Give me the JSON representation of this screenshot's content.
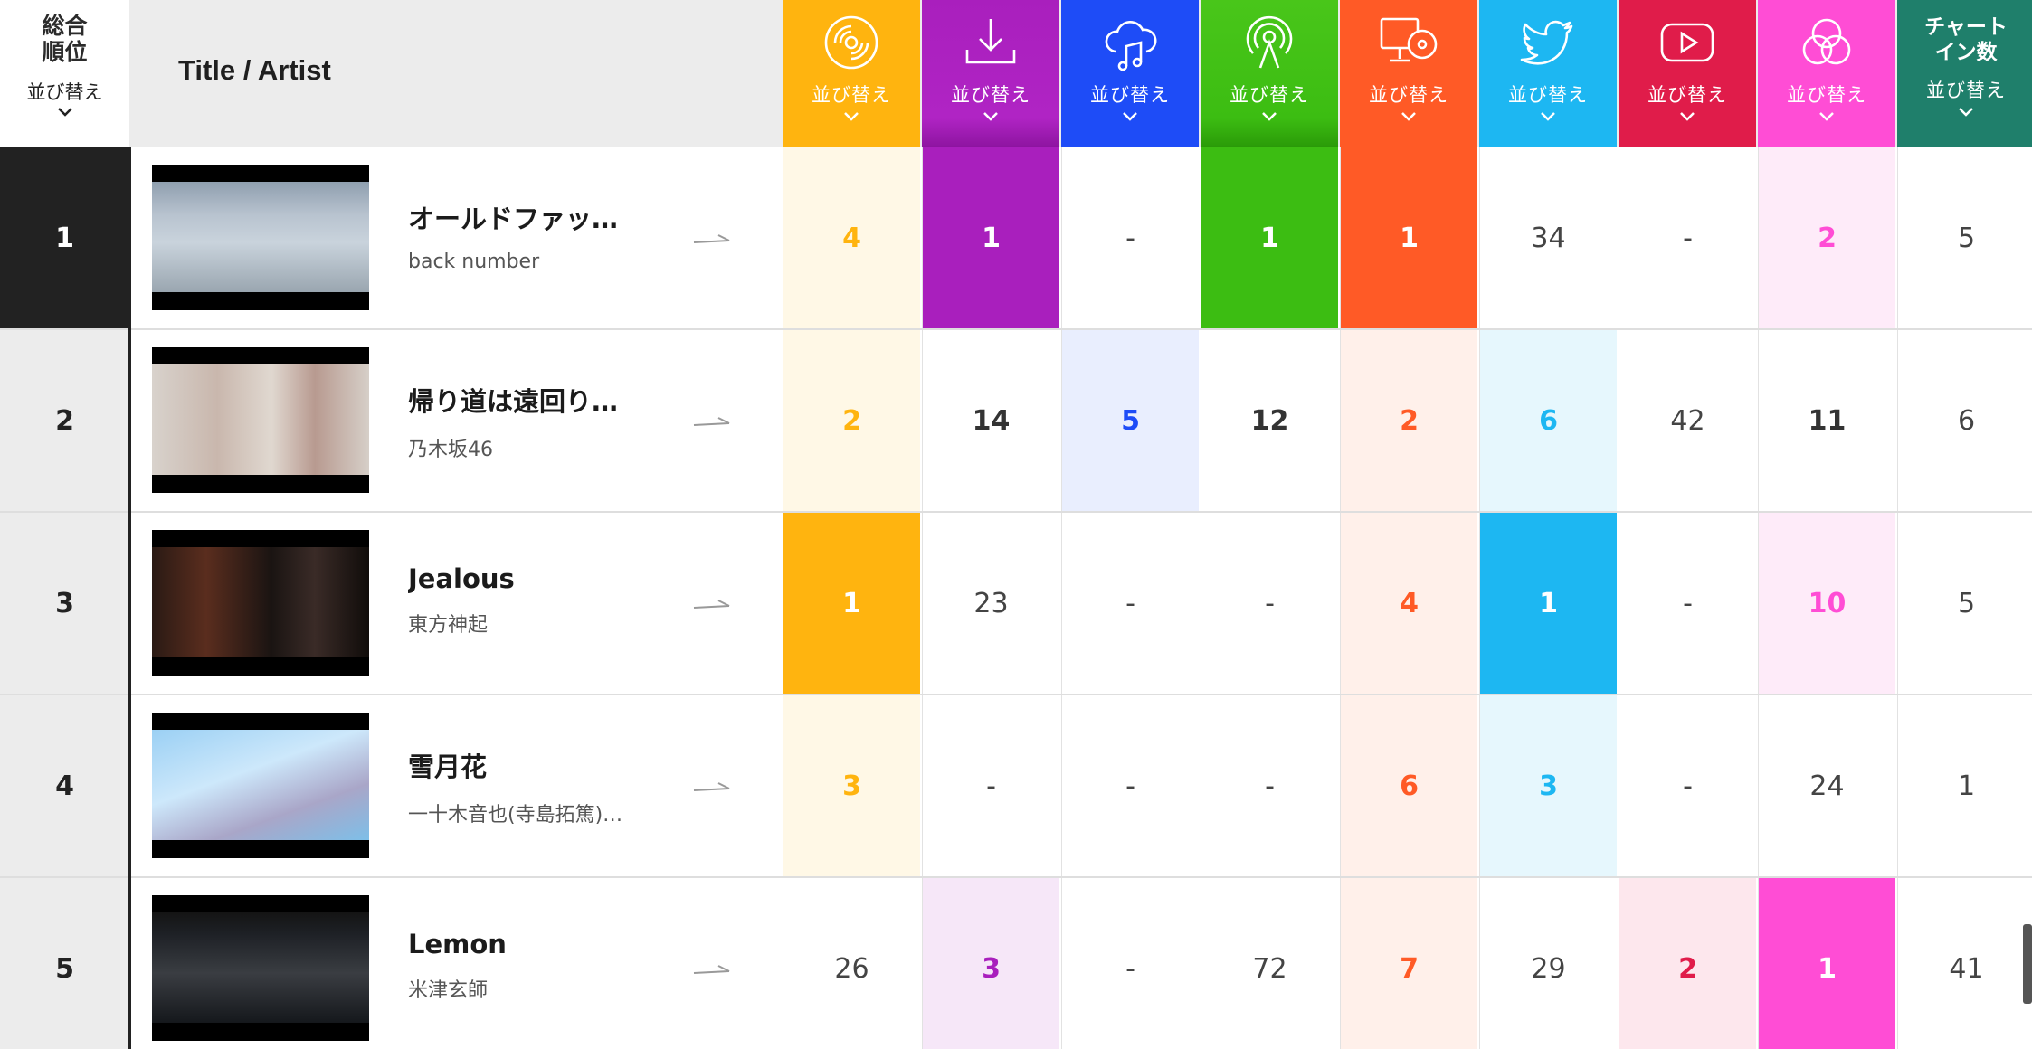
{
  "header": {
    "rank_label": "総合\n順位",
    "rank_label_l1": "総合",
    "rank_label_l2": "順位",
    "sort_label": "並び替え",
    "title_artist": "Title / Artist",
    "columns": [
      {
        "key": "cd",
        "icon": "cd-disc-icon",
        "color": "#ffb40f",
        "label": "並び替え"
      },
      {
        "key": "download",
        "icon": "download-icon",
        "color": "#a91fbd",
        "label": "並び替え"
      },
      {
        "key": "streaming",
        "icon": "cloud-music-icon",
        "color": "#1e4cf7",
        "label": "並び替え"
      },
      {
        "key": "radio",
        "icon": "radio-broadcast-icon",
        "color": "#3cbd12",
        "label": "並び替え"
      },
      {
        "key": "pc_lookup",
        "icon": "pc-disc-icon",
        "color": "#ff5a26",
        "label": "並び替え"
      },
      {
        "key": "twitter",
        "icon": "twitter-bird-icon",
        "color": "#1db7f2",
        "label": "並び替え"
      },
      {
        "key": "youtube",
        "icon": "youtube-icon",
        "color": "#e01c4a",
        "label": "並び替え"
      },
      {
        "key": "karaoke",
        "icon": "three-circles-icon",
        "color": "#ff4dd5",
        "label": "並び替え"
      },
      {
        "key": "chartin",
        "icon": "",
        "color": "#1f7f6b",
        "label": "並び替え",
        "title_l1": "チャート",
        "title_l2": "イン数"
      }
    ]
  },
  "rows": [
    {
      "rank": "1",
      "title": "オールドファッ…",
      "artist": "back number",
      "thumb": "street-scene",
      "values": [
        "4",
        "1",
        "-",
        "1",
        "1",
        "34",
        "-",
        "2",
        "5"
      ]
    },
    {
      "rank": "2",
      "title": "帰り道は遠回り…",
      "artist": "乃木坂46",
      "thumb": "classroom-scene",
      "values": [
        "2",
        "14",
        "5",
        "12",
        "2",
        "6",
        "42",
        "11",
        "6"
      ]
    },
    {
      "rank": "3",
      "title": "Jealous",
      "artist": "東方神起",
      "thumb": "dark-portrait-scene",
      "values": [
        "1",
        "23",
        "-",
        "-",
        "4",
        "1",
        "-",
        "10",
        "5"
      ]
    },
    {
      "rank": "4",
      "title": "雪月花",
      "artist": "一十木音也(寺島拓篤)…",
      "thumb": "anime-scene",
      "values": [
        "3",
        "-",
        "-",
        "-",
        "6",
        "3",
        "-",
        "24",
        "1"
      ]
    },
    {
      "rank": "5",
      "title": "Lemon",
      "artist": "米津玄師",
      "thumb": "group-scene",
      "values": [
        "26",
        "3",
        "-",
        "72",
        "7",
        "29",
        "2",
        "1",
        "41"
      ]
    }
  ],
  "colors": {
    "rank_first_bg": "#222222",
    "rank_bg": "#ececec",
    "header_bg": "#ececec"
  }
}
